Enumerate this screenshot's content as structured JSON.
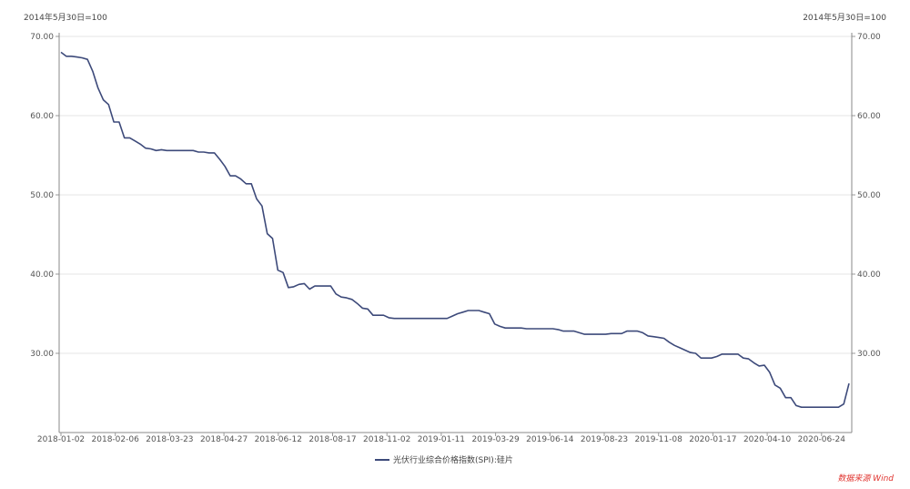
{
  "chart_data": {
    "type": "line",
    "left_unit": "2014年5月30日=100",
    "right_unit": "2014年5月30日=100",
    "y_ticks": [
      "70.00",
      "60.00",
      "50.00",
      "40.00",
      "30.00"
    ],
    "x_ticks": [
      "2018-01-02",
      "2018-02-06",
      "2018-03-23",
      "2018-04-27",
      "2018-06-12",
      "2018-08-17",
      "2018-11-02",
      "2019-01-11",
      "2019-03-29",
      "2019-06-14",
      "2019-08-23",
      "2019-11-08",
      "2020-01-17",
      "2020-04-10",
      "2020-06-24"
    ],
    "ylim": [
      20,
      70
    ],
    "grid": true,
    "legend_position": "bottom-center",
    "source": "数据来源 Wind",
    "series": [
      {
        "name": "光伏行业综合价格指数(SPI):硅片",
        "color": "#3d4a7a",
        "values": [
          68.0,
          67.5,
          67.5,
          67.4,
          67.3,
          67.1,
          65.6,
          63.5,
          62.0,
          61.4,
          59.2,
          59.2,
          57.2,
          57.2,
          56.8,
          56.4,
          55.9,
          55.8,
          55.6,
          55.7,
          55.6,
          55.6,
          55.6,
          55.6,
          55.6,
          55.6,
          55.4,
          55.4,
          55.3,
          55.3,
          54.5,
          53.6,
          52.4,
          52.4,
          52.0,
          51.4,
          51.4,
          49.5,
          48.6,
          45.1,
          44.5,
          40.5,
          40.2,
          38.3,
          38.4,
          38.7,
          38.8,
          38.1,
          38.5,
          38.5,
          38.5,
          38.5,
          37.5,
          37.1,
          37.0,
          36.8,
          36.3,
          35.7,
          35.6,
          34.8,
          34.8,
          34.8,
          34.5,
          34.4,
          34.4,
          34.4,
          34.4,
          34.4,
          34.4,
          34.4,
          34.4,
          34.4,
          34.4,
          34.4,
          34.7,
          35.0,
          35.2,
          35.4,
          35.4,
          35.4,
          35.2,
          35.0,
          33.7,
          33.4,
          33.2,
          33.2,
          33.2,
          33.2,
          33.1,
          33.1,
          33.1,
          33.1,
          33.1,
          33.1,
          33.0,
          32.8,
          32.8,
          32.8,
          32.6,
          32.4,
          32.4,
          32.4,
          32.4,
          32.4,
          32.5,
          32.5,
          32.5,
          32.8,
          32.8,
          32.8,
          32.6,
          32.2,
          32.1,
          32.0,
          31.9,
          31.4,
          31.0,
          30.7,
          30.4,
          30.1,
          30.0,
          29.4,
          29.4,
          29.4,
          29.6,
          29.9,
          29.9,
          29.9,
          29.9,
          29.4,
          29.3,
          28.8,
          28.4,
          28.5,
          27.6,
          26.0,
          25.6,
          24.4,
          24.4,
          23.4,
          23.2,
          23.2,
          23.2,
          23.2,
          23.2,
          23.2,
          23.2,
          23.2,
          23.6,
          26.2
        ]
      }
    ]
  }
}
